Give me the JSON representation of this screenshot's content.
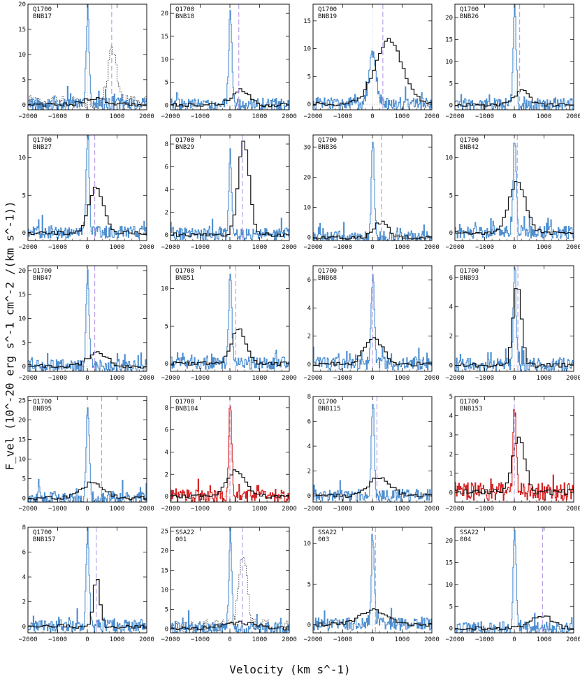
{
  "figure": {
    "ylabel": "F_vel (10^-20 erg s^-1 cm^-2 /(km s^-1))",
    "xlabel": "Velocity (km s^-1)"
  },
  "colors": {
    "frame": "#111111",
    "narrow": "#4f8fd0",
    "narrow_red": "#d42020",
    "broad": "#111111",
    "dashed_line": "#b59ae6",
    "zero_line": "#bdbdbd",
    "dotted": "#444444"
  },
  "chart_data": [
    {
      "type": "line",
      "field": "Q1700",
      "id": "BNB17",
      "xlim": [
        -2000,
        2000
      ],
      "ylim": [
        -1,
        20
      ],
      "yticks": [
        0,
        5,
        10,
        15,
        20
      ],
      "xticks": [
        -2000,
        -1000,
        0,
        1000,
        2000
      ],
      "peak_narrow": 19,
      "peak_broad": 1.2,
      "broad_center": 200,
      "broad_width": 500,
      "dash_v": 820,
      "dotted_peak": 11,
      "dotted_center": 820,
      "red": false
    },
    {
      "type": "line",
      "field": "Q1700",
      "id": "BNB18",
      "xlim": [
        -2000,
        2000
      ],
      "ylim": [
        -1,
        22
      ],
      "yticks": [
        0,
        5,
        10,
        15,
        20
      ],
      "xticks": [
        -2000,
        -1000,
        0,
        1000,
        2000
      ],
      "peak_narrow": 20,
      "peak_broad": 3.3,
      "broad_center": 300,
      "broad_width": 400,
      "dash_v": 300,
      "red": false
    },
    {
      "type": "line",
      "field": "Q1700",
      "id": "BNB19",
      "xlim": [
        -2000,
        2000
      ],
      "ylim": [
        -1,
        18
      ],
      "yticks": [
        0,
        5,
        10,
        15
      ],
      "xticks": [
        -2000,
        -1000,
        0,
        1000,
        2000
      ],
      "peak_narrow": 9,
      "peak_broad": 11.5,
      "broad_center": 500,
      "broad_width": 650,
      "dash_v": 350,
      "red": false
    },
    {
      "type": "line",
      "field": "Q1700",
      "id": "BNB26",
      "xlim": [
        -2000,
        2000
      ],
      "ylim": [
        -1,
        23
      ],
      "yticks": [
        0,
        5,
        10,
        15,
        20
      ],
      "xticks": [
        -2000,
        -1000,
        0,
        1000,
        2000
      ],
      "peak_narrow": 22,
      "peak_broad": 3.4,
      "broad_center": 200,
      "broad_width": 350,
      "dash_v": 180,
      "red": false
    },
    {
      "type": "line",
      "field": "Q1700",
      "id": "BNB27",
      "xlim": [
        -2000,
        2000
      ],
      "ylim": [
        -1,
        13
      ],
      "yticks": [
        0,
        5,
        10
      ],
      "xticks": [
        -2000,
        -1000,
        0,
        1000,
        2000
      ],
      "peak_narrow": 12.5,
      "peak_broad": 6,
      "broad_center": 250,
      "broad_width": 350,
      "dash_v": 250,
      "red": false
    },
    {
      "type": "line",
      "field": "Q1700",
      "id": "BNB29",
      "xlim": [
        -2000,
        2000
      ],
      "ylim": [
        -0.5,
        8.8
      ],
      "yticks": [
        0,
        2,
        4,
        6,
        8
      ],
      "xticks": [
        -2000,
        -1000,
        0,
        1000,
        2000
      ],
      "peak_narrow": 6.5,
      "peak_broad": 8.3,
      "broad_center": 420,
      "broad_width": 260,
      "dash_v": 420,
      "red": false
    },
    {
      "type": "line",
      "field": "Q1700",
      "id": "BNB36",
      "xlim": [
        -2000,
        2000
      ],
      "ylim": [
        -1,
        34
      ],
      "yticks": [
        0,
        10,
        20,
        30
      ],
      "xticks": [
        -2000,
        -1000,
        0,
        1000,
        2000
      ],
      "peak_narrow": 30,
      "peak_broad": 5,
      "broad_center": 250,
      "broad_width": 350,
      "dash_v": 300,
      "red": false
    },
    {
      "type": "line",
      "field": "Q1700",
      "id": "BNB42",
      "xlim": [
        -2000,
        2000
      ],
      "ylim": [
        -1,
        13
      ],
      "yticks": [
        0,
        5,
        10
      ],
      "xticks": [
        -2000,
        -1000,
        0,
        1000,
        2000
      ],
      "peak_narrow": 12.5,
      "peak_broad": 6.8,
      "broad_center": 50,
      "broad_width": 400,
      "dash_v": 100,
      "red": false
    },
    {
      "type": "line",
      "field": "Q1700",
      "id": "BNB47",
      "xlim": [
        -2000,
        2000
      ],
      "ylim": [
        -1,
        21
      ],
      "yticks": [
        0,
        5,
        10,
        15,
        20
      ],
      "xticks": [
        -2000,
        -1000,
        0,
        1000,
        2000
      ],
      "peak_narrow": 19.5,
      "peak_broad": 3,
      "broad_center": 300,
      "broad_width": 450,
      "dash_v": 250,
      "red": false
    },
    {
      "type": "line",
      "field": "Q1700",
      "id": "BNB51",
      "xlim": [
        -2000,
        2000
      ],
      "ylim": [
        -1,
        13
      ],
      "yticks": [
        0,
        5,
        10
      ],
      "xticks": [
        -2000,
        -1000,
        0,
        1000,
        2000
      ],
      "peak_narrow": 12,
      "peak_broad": 4.5,
      "broad_center": 250,
      "broad_width": 350,
      "dash_v": 200,
      "red": false
    },
    {
      "type": "line",
      "field": "Q1700",
      "id": "BNB68",
      "xlim": [
        -2000,
        2000
      ],
      "ylim": [
        -0.5,
        7
      ],
      "yticks": [
        0,
        2,
        4,
        6
      ],
      "xticks": [
        -2000,
        -1000,
        0,
        1000,
        2000
      ],
      "peak_narrow": 6.6,
      "peak_broad": 1.8,
      "broad_center": 0,
      "broad_width": 450,
      "dash_v": 0,
      "red": false
    },
    {
      "type": "line",
      "field": "Q1700",
      "id": "BNB93",
      "xlim": [
        -2000,
        2000
      ],
      "ylim": [
        -0.4,
        6.8
      ],
      "yticks": [
        0,
        2,
        4,
        6
      ],
      "xticks": [
        -2000,
        -1000,
        0,
        1000,
        2000
      ],
      "peak_narrow": 6.3,
      "peak_broad": 5.5,
      "broad_center": 50,
      "broad_width": 200,
      "dash_v": 120,
      "red": false
    },
    {
      "type": "line",
      "field": "Q1700",
      "id": "BNB95",
      "xlim": [
        -2000,
        2000
      ],
      "ylim": [
        -1,
        26
      ],
      "yticks": [
        0,
        5,
        10,
        15,
        20,
        25
      ],
      "xticks": [
        -2000,
        -1000,
        0,
        1000,
        2000
      ],
      "peak_narrow": 24,
      "peak_broad": 4,
      "broad_center": 150,
      "broad_width": 500,
      "dash_v": 480,
      "red": false
    },
    {
      "type": "line",
      "field": "Q1700",
      "id": "BNB104",
      "xlim": [
        -2000,
        2000
      ],
      "ylim": [
        -0.5,
        9
      ],
      "yticks": [
        0,
        2,
        4,
        6,
        8
      ],
      "xticks": [
        -2000,
        -1000,
        0,
        1000,
        2000
      ],
      "peak_narrow": 8.5,
      "peak_broad": 2.3,
      "broad_center": 150,
      "broad_width": 450,
      "dash_v": 0,
      "red": true
    },
    {
      "type": "line",
      "field": "Q1700",
      "id": "BNB115",
      "xlim": [
        -2000,
        2000
      ],
      "ylim": [
        -0.5,
        8
      ],
      "yticks": [
        0,
        2,
        4,
        6,
        8
      ],
      "xticks": [
        -2000,
        -1000,
        0,
        1000,
        2000
      ],
      "peak_narrow": 7.5,
      "peak_broad": 1.5,
      "broad_center": 200,
      "broad_width": 500,
      "dash_v": 150,
      "red": false
    },
    {
      "type": "line",
      "field": "Q1700",
      "id": "BNB153",
      "xlim": [
        -2000,
        2000
      ],
      "ylim": [
        -0.5,
        5
      ],
      "yticks": [
        0,
        1,
        2,
        3,
        4,
        5
      ],
      "xticks": [
        -2000,
        -1000,
        0,
        1000,
        2000
      ],
      "peak_narrow": 4.4,
      "peak_broad": 2.8,
      "broad_center": 100,
      "broad_width": 300,
      "dash_v": 0,
      "red": true
    },
    {
      "type": "line",
      "field": "Q1700",
      "id": "BNB157",
      "xlim": [
        -2000,
        2000
      ],
      "ylim": [
        -0.5,
        8
      ],
      "yticks": [
        0,
        2,
        4,
        6,
        8
      ],
      "xticks": [
        -2000,
        -1000,
        0,
        1000,
        2000
      ],
      "peak_narrow": 7.5,
      "peak_broad": 4,
      "broad_center": 270,
      "broad_width": 150,
      "dash_v": 300,
      "red": false
    },
    {
      "type": "line",
      "field": "SSA22",
      "id": "001",
      "xlim": [
        -2000,
        2000
      ],
      "ylim": [
        -1,
        26
      ],
      "yticks": [
        0,
        5,
        10,
        15,
        20,
        25
      ],
      "xticks": [
        -2000,
        -1000,
        0,
        1000,
        2000
      ],
      "peak_narrow": 23,
      "peak_broad": 1.5,
      "broad_center": 300,
      "broad_width": 800,
      "dash_v": 420,
      "dotted_peak": 18,
      "dotted_center": 420,
      "red": false
    },
    {
      "type": "line",
      "field": "SSA22",
      "id": "003",
      "xlim": [
        -2000,
        2000
      ],
      "ylim": [
        -1,
        12
      ],
      "yticks": [
        0,
        5,
        10
      ],
      "xticks": [
        -2000,
        -1000,
        0,
        1000,
        2000
      ],
      "peak_narrow": 11,
      "peak_broad": 1.8,
      "broad_center": 0,
      "broad_width": 600,
      "dash_v": 100,
      "red": false
    },
    {
      "type": "line",
      "field": "SSA22",
      "id": "004",
      "xlim": [
        -2000,
        2000
      ],
      "ylim": [
        -1,
        23
      ],
      "yticks": [
        0,
        5,
        10,
        15,
        20
      ],
      "xticks": [
        -2000,
        -1000,
        0,
        1000,
        2000
      ],
      "peak_narrow": 22,
      "peak_broad": 2.8,
      "broad_center": 900,
      "broad_width": 500,
      "dash_v": 950,
      "red": false
    }
  ]
}
